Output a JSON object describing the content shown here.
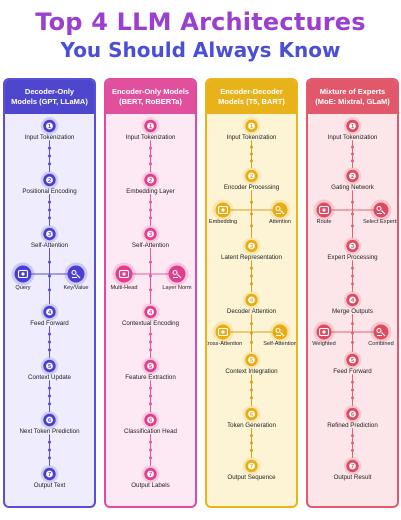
{
  "title_line1": "Top 4 LLM Architectures",
  "title_line2": "You Should Always Know",
  "panels": [
    {
      "header1": "Decoder-Only",
      "header2": "Models (GPT, LLaMA)",
      "theme": {
        "border": "#5b4fd8",
        "header": "#4e46cc",
        "bg": "#eeecfd",
        "node": "#4b3fd0",
        "line": "#5a50d0"
      },
      "steps": [
        "Input Tokenization",
        "Positional Encoding",
        "Self-Attention",
        "Feed Forward",
        "Context Update",
        "Next Token Prediction",
        "Output Text"
      ],
      "branch_labels": [
        "Query",
        "Key/Value"
      ]
    },
    {
      "header1": "Encoder-Only Models",
      "header2": "(BERT, RoBERTa)",
      "theme": {
        "border": "#e24a9a",
        "header": "#e0509c",
        "bg": "#fde9f3",
        "node": "#e23d8f",
        "line": "#e25a9e"
      },
      "steps": [
        "Input Tokenization",
        "Embedding Layer",
        "Self-Attention",
        "Contextual Encoding",
        "Feature Extraction",
        "Classification Head",
        "Output Labels"
      ],
      "branch_labels": [
        "Multi-Head",
        "Layer Norm"
      ]
    },
    {
      "header1": "Encoder-Decoder",
      "header2": "Models (T5, BART)",
      "theme": {
        "border": "#e9b61a",
        "header": "#e7b21a",
        "bg": "#fdf4d6",
        "node": "#e9ad12",
        "line": "#d9a21a"
      },
      "steps": [
        "Input Tokenization",
        "Encoder Processing",
        "Latent Representation",
        "Decoder Attention",
        "Context Integration",
        "Token Generation",
        "Output Sequence"
      ],
      "branch_labels_a": [
        "Embedding",
        "Attention"
      ],
      "branch_labels_b": [
        "Cross-Attention",
        "Self-Attention"
      ]
    },
    {
      "header1": "Mixture of Experts",
      "header2": "(MoE: Mixtral, GLaM)",
      "theme": {
        "border": "#e35a6e",
        "header": "#e0586a",
        "bg": "#fde6e9",
        "node": "#df4a63",
        "line": "#e06478"
      },
      "steps": [
        "Input Tokenization",
        "Gating Network",
        "Expert Processing",
        "Merge Outputs",
        "Feed Forward",
        "Refined Prediction",
        "Output Result"
      ],
      "branch_labels_a": [
        "Route",
        "Select Experts"
      ],
      "branch_labels_b": [
        "Weighted",
        "Combined"
      ]
    }
  ],
  "step_numbers": [
    "1",
    "2",
    "3",
    "4",
    "5",
    "6",
    "7"
  ]
}
